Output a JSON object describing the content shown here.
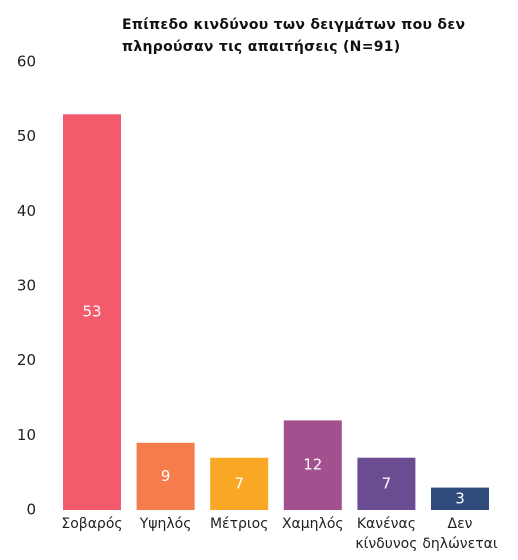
{
  "chart_data": {
    "type": "bar",
    "title": "Επίπεδο κινδύνου των δειγμάτων που δεν πληρούσαν τις απαιτήσεις (N=91)",
    "categories": [
      "Σοβαρός",
      "Υψηλός",
      "Μέτριος",
      "Χαμηλός",
      "Κανένας κίνδυνος",
      "Δεν δηλώνεται"
    ],
    "values": [
      53,
      9,
      7,
      12,
      7,
      3
    ],
    "colors": [
      "#f35b6d",
      "#f47d4b",
      "#f9a825",
      "#a3508f",
      "#6b4c92",
      "#2f4b7c"
    ],
    "ylim": [
      0,
      60
    ],
    "yticks": [
      0,
      10,
      20,
      30,
      40,
      50,
      60
    ],
    "grid": false
  }
}
